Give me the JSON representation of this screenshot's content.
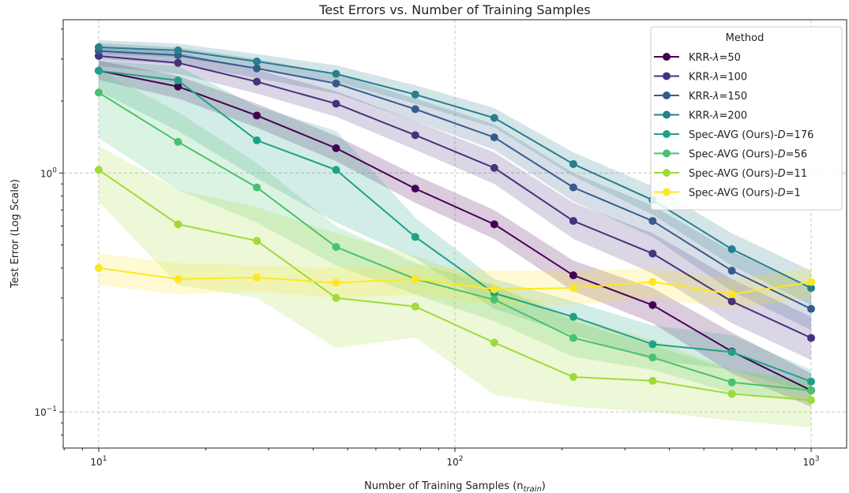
{
  "chart_data": {
    "type": "line",
    "title": "Test Errors vs. Number of Training Samples",
    "xlabel": "Number of Training Samples (n",
    "xlabel_sub": "train",
    "xlabel_close": ")",
    "ylabel": "Test Error (Log Scale)",
    "xscale": "log",
    "yscale": "log",
    "xlim": [
      7.95,
      1258
    ],
    "ylim": [
      0.0706,
      4.38
    ],
    "grid": true,
    "x_ticks": [
      {
        "value": 10,
        "base": "10",
        "exp": "1"
      },
      {
        "value": 100,
        "base": "10",
        "exp": "2"
      },
      {
        "value": 1000,
        "base": "10",
        "exp": "3"
      }
    ],
    "y_ticks": [
      {
        "value": 1,
        "base": "10",
        "exp": "0"
      },
      {
        "value": 0.1,
        "base": "10",
        "exp": "−1"
      }
    ],
    "legend": {
      "title": "Method",
      "position": "top-right"
    },
    "x": [
      10,
      16.7,
      27.8,
      46.4,
      77.4,
      129,
      215,
      359,
      599,
      1000
    ],
    "series": [
      {
        "name": "KRR-λ=50",
        "prefix": "KRR-",
        "sym": "λ",
        "suffix": "=50",
        "color": "#440154",
        "values": [
          2.68,
          2.3,
          1.74,
          1.27,
          0.86,
          0.61,
          0.373,
          0.28,
          0.179,
          0.123
        ],
        "lower": [
          2.45,
          2.05,
          1.55,
          1.12,
          0.75,
          0.53,
          0.32,
          0.235,
          0.145,
          0.105
        ],
        "upper": [
          2.95,
          2.55,
          1.95,
          1.43,
          0.98,
          0.7,
          0.43,
          0.33,
          0.215,
          0.145
        ]
      },
      {
        "name": "KRR-λ=100",
        "prefix": "KRR-",
        "sym": "λ",
        "suffix": "=100",
        "color": "#46327e",
        "values": [
          3.09,
          2.89,
          2.41,
          1.95,
          1.44,
          1.05,
          0.63,
          0.46,
          0.29,
          0.204
        ],
        "lower": [
          2.8,
          2.6,
          2.15,
          1.72,
          1.25,
          0.9,
          0.53,
          0.38,
          0.235,
          0.165
        ],
        "upper": [
          3.4,
          3.2,
          2.7,
          2.2,
          1.65,
          1.22,
          0.75,
          0.56,
          0.36,
          0.25
        ]
      },
      {
        "name": "KRR-λ=150",
        "prefix": "KRR-",
        "sym": "λ",
        "suffix": "=150",
        "color": "#365c8d",
        "values": [
          3.24,
          3.11,
          2.74,
          2.37,
          1.85,
          1.41,
          0.87,
          0.63,
          0.39,
          0.27
        ],
        "lower": [
          3.0,
          2.85,
          2.5,
          2.15,
          1.65,
          1.25,
          0.76,
          0.54,
          0.32,
          0.22
        ],
        "upper": [
          3.5,
          3.35,
          3.0,
          2.6,
          2.05,
          1.6,
          1.0,
          0.73,
          0.47,
          0.33
        ]
      },
      {
        "name": "KRR-λ=200",
        "prefix": "KRR-",
        "sym": "λ",
        "suffix": "=200",
        "color": "#277f8e",
        "values": [
          3.36,
          3.26,
          2.93,
          2.6,
          2.13,
          1.7,
          1.09,
          0.77,
          0.48,
          0.33
        ],
        "lower": [
          3.15,
          3.05,
          2.72,
          2.4,
          1.95,
          1.55,
          0.97,
          0.67,
          0.41,
          0.28
        ],
        "upper": [
          3.6,
          3.48,
          3.15,
          2.82,
          2.33,
          1.87,
          1.22,
          0.88,
          0.56,
          0.39
        ]
      },
      {
        "name": "Spec-AVG (Ours)-D=176",
        "prefix": "Spec-AVG (Ours)-",
        "sym": "D",
        "suffix": "=176",
        "color": "#1fa187",
        "values": [
          2.68,
          2.44,
          1.37,
          1.03,
          0.54,
          0.314,
          0.25,
          0.192,
          0.178,
          0.134
        ],
        "lower": [
          2.2,
          1.5,
          0.95,
          0.62,
          0.44,
          0.27,
          0.21,
          0.165,
          0.15,
          0.12
        ],
        "upper": [
          2.95,
          2.8,
          1.9,
          1.5,
          0.65,
          0.36,
          0.29,
          0.23,
          0.21,
          0.15
        ]
      },
      {
        "name": "Spec-AVG (Ours)-D=56",
        "prefix": "Spec-AVG (Ours)-",
        "sym": "D",
        "suffix": "=56",
        "color": "#4ac16d",
        "values": [
          2.17,
          1.35,
          0.87,
          0.49,
          0.36,
          0.295,
          0.204,
          0.169,
          0.133,
          0.123
        ],
        "lower": [
          1.4,
          0.85,
          0.62,
          0.41,
          0.31,
          0.24,
          0.17,
          0.15,
          0.12,
          0.11
        ],
        "upper": [
          2.7,
          1.8,
          1.1,
          0.6,
          0.42,
          0.34,
          0.24,
          0.19,
          0.15,
          0.135
        ]
      },
      {
        "name": "Spec-AVG (Ours)-D=11",
        "prefix": "Spec-AVG (Ours)-",
        "sym": "D",
        "suffix": "=11",
        "color": "#a0da39",
        "values": [
          1.03,
          0.61,
          0.52,
          0.3,
          0.276,
          0.195,
          0.14,
          0.135,
          0.119,
          0.112
        ],
        "lower": [
          0.76,
          0.34,
          0.3,
          0.185,
          0.205,
          0.118,
          0.105,
          0.1,
          0.092,
          0.086
        ],
        "upper": [
          1.3,
          0.85,
          0.72,
          0.56,
          0.45,
          0.34,
          0.25,
          0.2,
          0.15,
          0.13
        ]
      },
      {
        "name": "Spec-AVG (Ours)-D=1",
        "prefix": "Spec-AVG (Ours)-",
        "sym": "D",
        "suffix": "=1",
        "color": "#fde725",
        "values": [
          0.4,
          0.36,
          0.365,
          0.347,
          0.36,
          0.326,
          0.33,
          0.35,
          0.311,
          0.35
        ],
        "lower": [
          0.34,
          0.31,
          0.32,
          0.3,
          0.31,
          0.28,
          0.28,
          0.3,
          0.27,
          0.3
        ],
        "upper": [
          0.46,
          0.42,
          0.41,
          0.4,
          0.41,
          0.39,
          0.39,
          0.4,
          0.36,
          0.4
        ]
      }
    ]
  }
}
